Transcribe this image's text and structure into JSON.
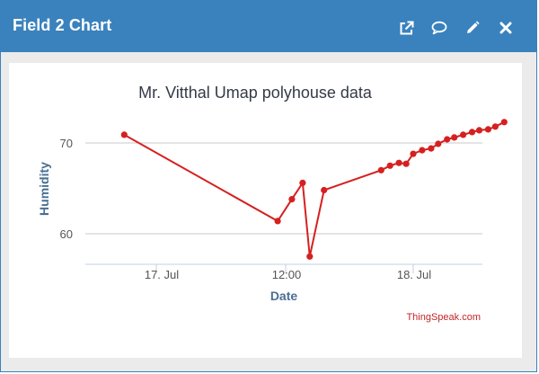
{
  "window": {
    "title": "Field 2 Chart",
    "toolbar_icons": [
      "external-link-icon",
      "comment-icon",
      "pencil-icon",
      "close-icon"
    ]
  },
  "chart_data": {
    "type": "line",
    "title": "Mr. Vitthal Umap polyhouse data",
    "xlabel": "Date",
    "ylabel": "Humidity",
    "x_tick_labels": [
      "17. Jul",
      "12:00",
      "18. Jul"
    ],
    "y_tick_labels": [
      "60",
      "70"
    ],
    "credit": "ThingSpeak.com",
    "series": [
      {
        "color": "#d62020",
        "points": [
          {
            "x": "16. Jul 21:00",
            "y": 70.9
          },
          {
            "x": "17. Jul 11:20",
            "y": 61.4
          },
          {
            "x": "17. Jul 12:40",
            "y": 63.8
          },
          {
            "x": "17. Jul 13:40",
            "y": 65.6
          },
          {
            "x": "17. Jul 14:20",
            "y": 57.5
          },
          {
            "x": "17. Jul 15:40",
            "y": 64.8
          },
          {
            "x": "17. Jul 21:00",
            "y": 67.0
          },
          {
            "x": "17. Jul 21:50",
            "y": 67.5
          },
          {
            "x": "17. Jul 22:40",
            "y": 67.8
          },
          {
            "x": "17. Jul 23:20",
            "y": 67.7
          },
          {
            "x": "18. Jul 00:00",
            "y": 68.8
          },
          {
            "x": "18. Jul 00:50",
            "y": 69.2
          },
          {
            "x": "18. Jul 01:40",
            "y": 69.4
          },
          {
            "x": "18. Jul 02:20",
            "y": 69.9
          },
          {
            "x": "18. Jul 03:10",
            "y": 70.4
          },
          {
            "x": "18. Jul 03:50",
            "y": 70.6
          },
          {
            "x": "18. Jul 04:40",
            "y": 70.9
          },
          {
            "x": "18. Jul 05:30",
            "y": 71.2
          },
          {
            "x": "18. Jul 06:10",
            "y": 71.4
          },
          {
            "x": "18. Jul 07:00",
            "y": 71.5
          },
          {
            "x": "18. Jul 07:40",
            "y": 71.8
          },
          {
            "x": "18. Jul 08:30",
            "y": 72.3
          }
        ]
      }
    ],
    "x_range": [
      "16. Jul 20:30",
      "18. Jul 09:00"
    ],
    "y_range": [
      56.5,
      73.5
    ],
    "grid": true
  }
}
